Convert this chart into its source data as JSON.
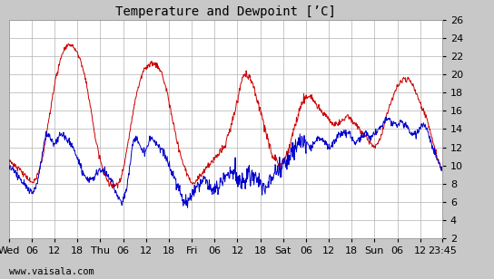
{
  "title": "Temperature and Dewpoint [’C]",
  "ylim": [
    2,
    26
  ],
  "temp_color": "#cc0000",
  "dew_color": "#0000cc",
  "bg_color": "#c8c8c8",
  "plot_bg": "#ffffff",
  "grid_color": "#b0b0b0",
  "watermark": "www.vaisala.com",
  "title_fontsize": 10,
  "tick_fontsize": 8,
  "watermark_fontsize": 7.5,
  "x_tick_labels": [
    "Wed",
    "06",
    "12",
    "18",
    "Thu",
    "06",
    "12",
    "18",
    "Fri",
    "06",
    "12",
    "18",
    "Sat",
    "06",
    "12",
    "18",
    "Sun",
    "06",
    "12",
    "23:45"
  ],
  "x_tick_positions": [
    0,
    6,
    12,
    18,
    24,
    30,
    36,
    42,
    48,
    54,
    60,
    66,
    72,
    78,
    84,
    90,
    96,
    102,
    108,
    113.75
  ],
  "xlim": [
    0,
    113.75
  ],
  "temp_data": [
    10.5,
    10.2,
    9.8,
    9.5,
    9.0,
    8.6,
    8.2,
    8.5,
    9.5,
    11.0,
    13.5,
    16.0,
    18.5,
    20.5,
    22.0,
    22.8,
    23.2,
    23.0,
    22.5,
    21.5,
    20.0,
    18.0,
    15.5,
    13.0,
    11.0,
    9.5,
    8.5,
    8.0,
    7.8,
    8.0,
    9.0,
    11.0,
    13.5,
    16.0,
    18.0,
    19.5,
    20.5,
    21.0,
    21.2,
    21.0,
    20.5,
    19.5,
    18.0,
    16.0,
    14.0,
    12.0,
    10.5,
    9.5,
    8.5,
    8.0,
    8.5,
    9.0,
    9.5,
    10.0,
    10.5,
    11.0,
    11.5,
    12.0,
    13.0,
    14.5,
    16.0,
    18.0,
    19.5,
    20.0,
    19.5,
    18.5,
    17.0,
    15.5,
    14.0,
    12.5,
    11.0,
    10.5,
    10.0,
    10.5,
    11.5,
    13.0,
    14.5,
    16.0,
    17.0,
    17.5,
    17.5,
    17.0,
    16.5,
    16.0,
    15.5,
    15.0,
    14.5,
    14.5,
    14.8,
    15.0,
    15.5,
    15.0,
    14.5,
    14.0,
    13.5,
    13.0,
    12.5,
    12.0,
    12.5,
    13.5,
    15.0,
    16.5,
    17.5,
    18.5,
    19.0,
    19.5,
    19.5,
    19.0,
    18.0,
    17.0,
    16.0,
    15.0,
    13.5,
    12.0,
    10.5,
    9.5
  ],
  "dew_data": [
    10.0,
    9.5,
    9.0,
    8.5,
    8.0,
    7.5,
    7.0,
    7.5,
    9.0,
    11.5,
    13.5,
    13.0,
    12.5,
    13.0,
    13.5,
    13.0,
    12.5,
    12.0,
    11.0,
    10.0,
    9.0,
    8.5,
    8.5,
    9.0,
    9.5,
    9.5,
    9.0,
    8.5,
    7.5,
    6.5,
    6.0,
    7.0,
    9.5,
    12.5,
    13.0,
    12.0,
    11.5,
    12.5,
    13.0,
    12.5,
    12.0,
    11.5,
    10.5,
    9.5,
    8.5,
    7.5,
    6.5,
    6.0,
    6.5,
    7.0,
    7.5,
    8.0,
    8.5,
    8.0,
    7.5,
    7.5,
    8.0,
    8.5,
    9.0,
    9.0,
    9.5,
    8.5,
    8.0,
    8.5,
    9.0,
    9.0,
    8.5,
    8.0,
    7.5,
    8.0,
    8.5,
    9.0,
    9.5,
    10.0,
    10.5,
    11.5,
    12.0,
    12.5,
    12.5,
    12.5,
    12.0,
    12.5,
    13.0,
    13.0,
    12.5,
    12.0,
    12.5,
    13.0,
    13.5,
    13.5,
    13.5,
    13.0,
    12.5,
    13.0,
    13.5,
    13.5,
    13.0,
    13.5,
    14.0,
    14.5,
    15.0,
    15.0,
    14.5,
    14.5,
    14.8,
    14.5,
    14.0,
    13.5,
    13.5,
    14.0,
    14.5,
    14.0,
    12.5,
    11.5,
    10.5,
    9.5
  ]
}
